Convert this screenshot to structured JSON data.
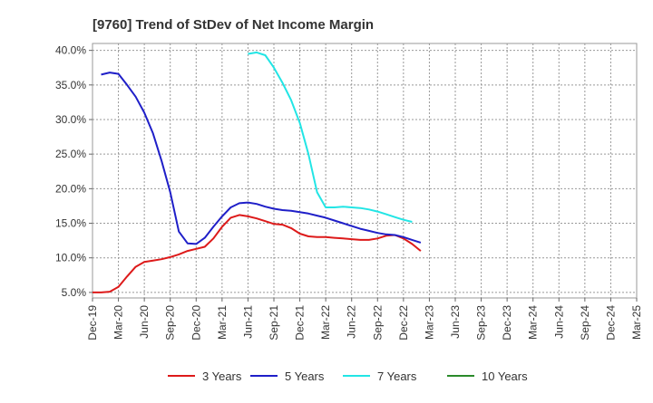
{
  "chart_data": {
    "type": "line",
    "title": "[9760]  Trend of StDev of Net Income Margin",
    "xlabel": "",
    "ylabel": "",
    "x_ticks": [
      "Dec-19",
      "Mar-20",
      "Jun-20",
      "Sep-20",
      "Dec-20",
      "Mar-21",
      "Jun-21",
      "Sep-21",
      "Dec-21",
      "Mar-22",
      "Jun-22",
      "Sep-22",
      "Dec-22",
      "Mar-23",
      "Jun-23",
      "Sep-23",
      "Dec-23",
      "Mar-24",
      "Jun-24",
      "Sep-24",
      "Dec-24",
      "Mar-25"
    ],
    "y_ticks": [
      "5.0%",
      "10.0%",
      "15.0%",
      "20.0%",
      "25.0%",
      "30.0%",
      "35.0%",
      "40.0%"
    ],
    "y_tick_values": [
      5,
      10,
      15,
      20,
      25,
      30,
      35,
      40
    ],
    "ylim": [
      4.2,
      41.0
    ],
    "grid": true,
    "legend_position": "bottom",
    "series": [
      {
        "name": "3 Years",
        "color": "#dd1a1a",
        "start_index": 0,
        "values": [
          5.0,
          5.0,
          5.1,
          5.8,
          7.3,
          8.7,
          9.4,
          9.6,
          9.8,
          10.1,
          10.5,
          11.0,
          11.3,
          11.6,
          12.8,
          14.5,
          15.8,
          16.2,
          16.0,
          15.7,
          15.3,
          14.9,
          14.8,
          14.3,
          13.5,
          13.1,
          13.0,
          13.0,
          12.9,
          12.8,
          12.7,
          12.6,
          12.6,
          12.8,
          13.2,
          13.3,
          12.8,
          12.0,
          11.0
        ]
      },
      {
        "name": "5 Years",
        "color": "#1f1fc8",
        "start_index": 1,
        "values": [
          36.5,
          36.8,
          36.6,
          35.0,
          33.3,
          31.0,
          28.0,
          24.0,
          19.5,
          13.8,
          12.1,
          12.0,
          12.9,
          14.5,
          16.0,
          17.3,
          17.9,
          18.0,
          17.8,
          17.4,
          17.1,
          16.9,
          16.8,
          16.6,
          16.4,
          16.1,
          15.8,
          15.4,
          15.0,
          14.6,
          14.2,
          13.9,
          13.6,
          13.4,
          13.3,
          13.0,
          12.6,
          12.2
        ]
      },
      {
        "name": "7 Years",
        "color": "#22e5e5",
        "start_index": 18,
        "values": [
          39.5,
          39.7,
          39.3,
          37.5,
          35.3,
          32.8,
          29.5,
          25.0,
          19.5,
          17.3,
          17.3,
          17.4,
          17.3,
          17.2,
          17.0,
          16.7,
          16.3,
          15.9,
          15.5,
          15.2
        ]
      },
      {
        "name": "10 Years",
        "color": "#2a8a2a",
        "start_index": 0,
        "values": []
      }
    ]
  }
}
